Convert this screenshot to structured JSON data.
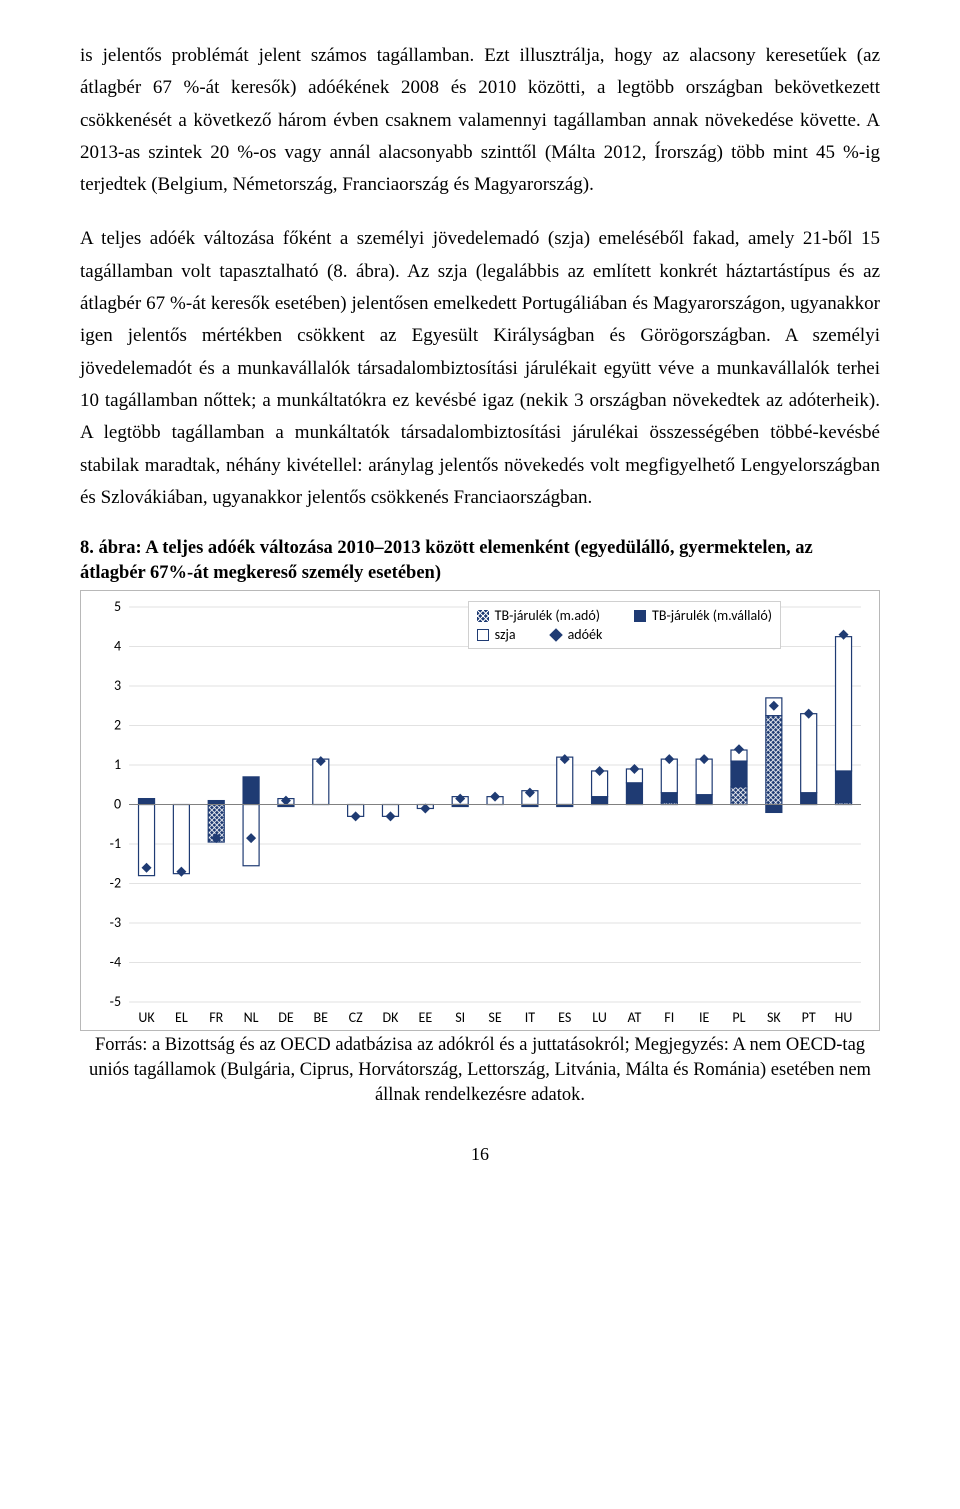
{
  "para1": "is jelentős problémát jelent számos tagállamban. Ezt illusztrálja, hogy az alacsony keresetűek (az átlagbér 67 %-át keresők) adóékének 2008 és 2010 közötti, a legtöbb országban bekövetkezett csökkenését a következő három évben csaknem valamennyi tagállamban annak növekedése követte. A 2013-as szintek 20 %-os vagy annál alacsonyabb szinttől (Málta 2012, Írország) több mint 45 %-ig terjedtek (Belgium, Németország, Franciaország és Magyarország).",
  "para2": "A teljes adóék változása főként a személyi jövedelemadó (szja) emeléséből fakad, amely 21-ből 15 tagállamban volt tapasztalható (8. ábra). Az szja (legalábbis az említett konkrét háztartástípus és az átlagbér 67 %-át keresők esetében) jelentősen emelkedett Portugáliában és Magyarországon, ugyanakkor igen jelentős mértékben csökkent az Egyesült Királyságban és Görögországban. A személyi jövedelemadót és a munkavállalók társadalombiztosítási járulékait együtt véve a munkavállalók terhei 10 tagállamban nőttek; a munkáltatókra ez kevésbé igaz (nekik 3 országban növekedtek az adóterheik). A legtöbb tagállamban a munkáltatók társadalombiztosítási járulékai összességében többé-kevésbé stabilak maradtak, néhány kivétellel: aránylag jelentős növekedés volt megfigyelhető Lengyelországban és Szlovákiában, ugyanakkor jelentős csökkenés Franciaországban.",
  "chart_heading": "8. ábra: A teljes adóék változása 2010–2013 között elemenként (egyedülálló, gyermektelen, az átlagbér 67%-át megkereső személy esetében)",
  "caption": "Forrás: a Bizottság és az OECD adatbázisa az adókról és a juttatásokról; Megjegyzés: A nem OECD-tag uniós tagállamok (Bulgária, Ciprus, Horvátország, Lettország, Litvánia, Málta és Románia) esetében nem állnak rendelkezésre adatok.",
  "page_number": "16",
  "legend": {
    "items": [
      {
        "label": "TB-járulék (m.adó)"
      },
      {
        "label": "TB-járulék (m.vállaló)"
      },
      {
        "label": "szja"
      },
      {
        "label": "adóék"
      }
    ]
  },
  "chart": {
    "type": "stacked-bar-with-marker",
    "ymin": -5,
    "ymax": 5,
    "ystep": 1,
    "axis_color": "#808080",
    "grid_color": "#d9d9d9",
    "tick_font": "Calibri, Arial, sans-serif",
    "tick_fontsize": 14,
    "bar_navy": "#1f3b73",
    "bar_outline": "#1f3b73",
    "categories": [
      "UK",
      "EL",
      "FR",
      "NL",
      "DE",
      "BE",
      "CZ",
      "DK",
      "EE",
      "SI",
      "SE",
      "IT",
      "ES",
      "LU",
      "AT",
      "FI",
      "IE",
      "PL",
      "SK",
      "PT",
      "HU"
    ],
    "series": {
      "sb_employer": [
        0,
        0,
        -0.95,
        0,
        0,
        0,
        0,
        0,
        0,
        0,
        0,
        0,
        0,
        0,
        0,
        0.05,
        0,
        0.45,
        2.25,
        0,
        0.05
      ],
      "sb_employee": [
        0.15,
        0,
        0.1,
        0.7,
        -0.05,
        0,
        0,
        0,
        0,
        -0.05,
        0,
        -0.05,
        -0.05,
        0.2,
        0.55,
        0.25,
        0.25,
        0.65,
        -0.2,
        0.3,
        0.8
      ],
      "szja": [
        -1.8,
        -1.75,
        0,
        -1.55,
        0.15,
        1.15,
        -0.3,
        -0.3,
        -0.1,
        0.2,
        0.2,
        0.35,
        1.2,
        0.65,
        0.35,
        0.85,
        0.9,
        0.28,
        0.45,
        2.0,
        3.4
      ],
      "adoek": [
        -1.6,
        -1.7,
        -0.85,
        -0.85,
        0.1,
        1.1,
        -0.3,
        -0.3,
        -0.1,
        0.15,
        0.2,
        0.3,
        1.15,
        0.85,
        0.9,
        1.15,
        1.15,
        1.4,
        2.5,
        2.3,
        4.3
      ]
    }
  }
}
